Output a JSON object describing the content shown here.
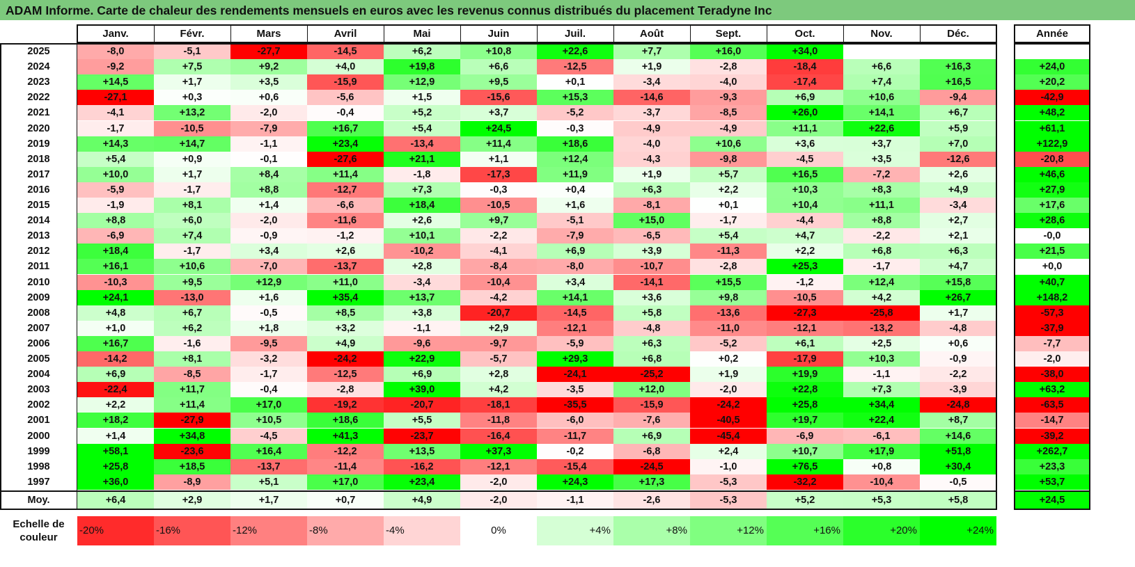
{
  "title": "ADAM Informe. Carte de chaleur des rendements mensuels en euros avec les revenus connus distribués du placement Teradyne Inc",
  "colors": {
    "title_bg": "#7dc97d",
    "negative_max": "#ff0000",
    "neutral": "#ffffff",
    "positive_max": "#00ff00"
  },
  "chart_data": {
    "type": "heatmap",
    "title": "ADAM Informe. Carte de chaleur des rendements mensuels en euros avec les revenus connus distribués du placement Teradyne Inc",
    "months": [
      "Janv.",
      "Févr.",
      "Mars",
      "Avril",
      "Mai",
      "Juin",
      "Juil.",
      "Août",
      "Sept.",
      "Oct.",
      "Nov.",
      "Déc."
    ],
    "annual_label": "Année",
    "avg_label": "Moy.",
    "rows": [
      {
        "year": "2025",
        "values": [
          "-8,0",
          "-5,1",
          "-27,7",
          "-14,5",
          "+6,2",
          "+10,8",
          "+22,6",
          "+7,7",
          "+16,0",
          "+34,0",
          "",
          ""
        ],
        "annual": ""
      },
      {
        "year": "2024",
        "values": [
          "-9,2",
          "+7,5",
          "+9,2",
          "+4,0",
          "+19,8",
          "+6,6",
          "-12,5",
          "+1,9",
          "-2,8",
          "-18,4",
          "+6,6",
          "+16,3"
        ],
        "annual": "+24,0"
      },
      {
        "year": "2023",
        "values": [
          "+14,5",
          "+1,7",
          "+3,5",
          "-15,9",
          "+12,9",
          "+9,5",
          "+0,1",
          "-3,4",
          "-4,0",
          "-17,4",
          "+7,4",
          "+16,5"
        ],
        "annual": "+20,2"
      },
      {
        "year": "2022",
        "values": [
          "-27,1",
          "+0,3",
          "+0,6",
          "-5,6",
          "+1,5",
          "-15,6",
          "+15,3",
          "-14,6",
          "-9,3",
          "+6,9",
          "+10,6",
          "-9,4"
        ],
        "annual": "-42,9"
      },
      {
        "year": "2021",
        "values": [
          "-4,1",
          "+13,2",
          "-2,0",
          "-0,4",
          "+5,2",
          "+3,7",
          "-5,2",
          "-3,7",
          "-8,5",
          "+26,0",
          "+14,1",
          "+6,7"
        ],
        "annual": "+48,2"
      },
      {
        "year": "2020",
        "values": [
          "-1,7",
          "-10,5",
          "-7,9",
          "+16,7",
          "+5,4",
          "+24,5",
          "-0,3",
          "-4,9",
          "-4,9",
          "+11,1",
          "+22,6",
          "+5,9"
        ],
        "annual": "+61,1"
      },
      {
        "year": "2019",
        "values": [
          "+14,3",
          "+14,7",
          "-1,1",
          "+23,4",
          "-13,4",
          "+11,4",
          "+18,6",
          "-4,0",
          "+10,6",
          "+3,6",
          "+3,7",
          "+7,0"
        ],
        "annual": "+122,9"
      },
      {
        "year": "2018",
        "values": [
          "+5,4",
          "+0,9",
          "-0,1",
          "-27,6",
          "+21,1",
          "+1,1",
          "+12,4",
          "-4,3",
          "-9,8",
          "-4,5",
          "+3,5",
          "-12,6"
        ],
        "annual": "-20,8"
      },
      {
        "year": "2017",
        "values": [
          "+10,0",
          "+1,7",
          "+8,4",
          "+11,4",
          "-1,8",
          "-17,3",
          "+11,9",
          "+1,9",
          "+5,7",
          "+16,5",
          "-7,2",
          "+2,6"
        ],
        "annual": "+46,6"
      },
      {
        "year": "2016",
        "values": [
          "-5,9",
          "-1,7",
          "+8,8",
          "-12,7",
          "+7,3",
          "-0,3",
          "+0,4",
          "+6,3",
          "+2,2",
          "+10,3",
          "+8,3",
          "+4,9"
        ],
        "annual": "+27,9"
      },
      {
        "year": "2015",
        "values": [
          "-1,9",
          "+8,1",
          "+1,4",
          "-6,6",
          "+18,4",
          "-10,5",
          "+1,6",
          "-8,1",
          "+0,1",
          "+10,4",
          "+11,1",
          "-3,4"
        ],
        "annual": "+17,6"
      },
      {
        "year": "2014",
        "values": [
          "+8,8",
          "+6,0",
          "-2,0",
          "-11,6",
          "+2,6",
          "+9,7",
          "-5,1",
          "+15,0",
          "-1,7",
          "-4,4",
          "+8,8",
          "+2,7"
        ],
        "annual": "+28,6"
      },
      {
        "year": "2013",
        "values": [
          "-6,9",
          "+7,4",
          "-0,9",
          "-1,2",
          "+10,1",
          "-2,2",
          "-7,9",
          "-6,5",
          "+5,4",
          "+4,7",
          "-2,2",
          "+2,1"
        ],
        "annual": "-0,0"
      },
      {
        "year": "2012",
        "values": [
          "+18,4",
          "-1,7",
          "+3,4",
          "+2,6",
          "-10,2",
          "-4,1",
          "+6,9",
          "+3,9",
          "-11,3",
          "+2,2",
          "+6,8",
          "+6,3"
        ],
        "annual": "+21,5"
      },
      {
        "year": "2011",
        "values": [
          "+16,1",
          "+10,6",
          "-7,0",
          "-13,7",
          "+2,8",
          "-8,4",
          "-8,0",
          "-10,7",
          "-2,8",
          "+25,3",
          "-1,7",
          "+4,7"
        ],
        "annual": "+0,0"
      },
      {
        "year": "2010",
        "values": [
          "-10,3",
          "+9,5",
          "+12,9",
          "+11,0",
          "-3,4",
          "-10,4",
          "+3,4",
          "-14,1",
          "+15,5",
          "-1,2",
          "+12,4",
          "+15,8"
        ],
        "annual": "+40,7"
      },
      {
        "year": "2009",
        "values": [
          "+24,1",
          "-13,0",
          "+1,6",
          "+35,4",
          "+13,7",
          "-4,2",
          "+14,1",
          "+3,6",
          "+9,8",
          "-10,5",
          "+4,2",
          "+26,7"
        ],
        "annual": "+148,2"
      },
      {
        "year": "2008",
        "values": [
          "+4,8",
          "+6,7",
          "-0,5",
          "+8,5",
          "+3,8",
          "-20,7",
          "-14,5",
          "+5,8",
          "-13,6",
          "-27,3",
          "-25,8",
          "+1,7"
        ],
        "annual": "-57,3"
      },
      {
        "year": "2007",
        "values": [
          "+1,0",
          "+6,2",
          "+1,8",
          "+3,2",
          "-1,1",
          "+2,9",
          "-12,1",
          "-4,8",
          "-11,0",
          "-12,1",
          "-13,2",
          "-4,8"
        ],
        "annual": "-37,9"
      },
      {
        "year": "2006",
        "values": [
          "+16,7",
          "-1,6",
          "-9,5",
          "+4,9",
          "-9,6",
          "-9,7",
          "-5,9",
          "+6,3",
          "-5,2",
          "+6,1",
          "+2,5",
          "+0,6"
        ],
        "annual": "-7,7"
      },
      {
        "year": "2005",
        "values": [
          "-14,2",
          "+8,1",
          "-3,2",
          "-24,2",
          "+22,9",
          "-5,7",
          "+29,3",
          "+6,8",
          "+0,2",
          "-17,9",
          "+10,3",
          "-0,9"
        ],
        "annual": "-2,0"
      },
      {
        "year": "2004",
        "values": [
          "+6,9",
          "-8,5",
          "-1,7",
          "-12,5",
          "+6,9",
          "+2,8",
          "-24,1",
          "-25,2",
          "+1,9",
          "+19,9",
          "-1,1",
          "-2,2"
        ],
        "annual": "-38,0"
      },
      {
        "year": "2003",
        "values": [
          "-22,4",
          "+11,7",
          "-0,4",
          "-2,8",
          "+39,0",
          "+4,2",
          "-3,5",
          "+12,0",
          "-2,0",
          "+22,8",
          "+7,3",
          "-3,9"
        ],
        "annual": "+63,2"
      },
      {
        "year": "2002",
        "values": [
          "+2,2",
          "+11,4",
          "+17,0",
          "-19,2",
          "-20,7",
          "-18,1",
          "-35,5",
          "-15,9",
          "-24,2",
          "+25,8",
          "+34,4",
          "-24,8"
        ],
        "annual": "-63,5"
      },
      {
        "year": "2001",
        "values": [
          "+18,2",
          "-27,9",
          "+10,5",
          "+18,6",
          "+5,5",
          "-11,8",
          "-6,0",
          "-7,6",
          "-40,5",
          "+19,7",
          "+22,4",
          "+8,7"
        ],
        "annual": "-14,7"
      },
      {
        "year": "2000",
        "values": [
          "+1,4",
          "+34,8",
          "-4,5",
          "+41,3",
          "-23,7",
          "-16,4",
          "-11,7",
          "+6,9",
          "-45,4",
          "-6,9",
          "-6,1",
          "+14,6"
        ],
        "annual": "-39,2"
      },
      {
        "year": "1999",
        "values": [
          "+58,1",
          "-23,6",
          "+16,4",
          "-12,2",
          "+13,5",
          "+37,3",
          "-0,2",
          "-6,8",
          "+2,4",
          "+10,7",
          "+17,9",
          "+51,8"
        ],
        "annual": "+262,7"
      },
      {
        "year": "1998",
        "values": [
          "+25,8",
          "+18,5",
          "-13,7",
          "-11,4",
          "-16,2",
          "-12,1",
          "-15,4",
          "-24,5",
          "-1,0",
          "+76,5",
          "+0,8",
          "+30,4"
        ],
        "annual": "+23,3"
      },
      {
        "year": "1997",
        "values": [
          "+36,0",
          "-8,9",
          "+5,1",
          "+17,0",
          "+23,4",
          "-2,0",
          "+24,3",
          "+17,3",
          "-5,3",
          "-32,2",
          "-10,4",
          "-0,5"
        ],
        "annual": "+53,7"
      }
    ],
    "averages": {
      "values": [
        "+6,4",
        "+2,9",
        "+1,7",
        "+0,7",
        "+4,9",
        "-2,0",
        "-1,1",
        "-2,6",
        "-5,3",
        "+5,2",
        "+5,3",
        "+5,8"
      ],
      "annual": "+24,5"
    },
    "color_scale": {
      "label": "Echelle de couleur",
      "steps": [
        "-20%",
        "-16%",
        "-12%",
        "-8%",
        "-4%",
        "0%",
        "+4%",
        "+8%",
        "+12%",
        "+16%",
        "+20%",
        "+24%"
      ]
    }
  }
}
